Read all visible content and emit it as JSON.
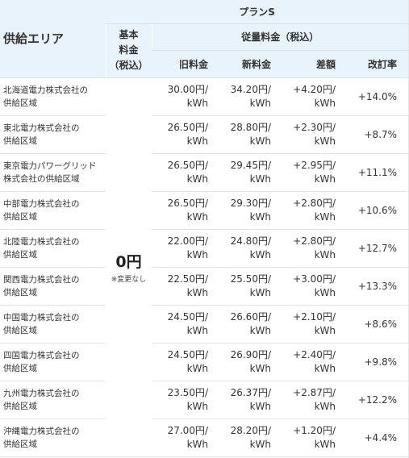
{
  "header": {
    "area_label": "供給エリア",
    "plan_label": "プランS",
    "base_fee_label": "基本\n料金\n（税込）",
    "usage_fee_label": "従量料金（税込）",
    "col_old": "旧料金",
    "col_new": "新料金",
    "col_diff": "差額",
    "col_rate": "改訂率"
  },
  "base_fee": {
    "value": "0円",
    "note": "※変更なし"
  },
  "rows": [
    {
      "area": "北海道電力株式会社の\n供給区域",
      "old": "30.00円/\nkWh",
      "new": "34.20円/\nkWh",
      "diff": "+4.20円/\nkWh",
      "rate": "+14.0%"
    },
    {
      "area": "東北電力株式会社の\n供給区域",
      "old": "26.50円/\nkWh",
      "new": "28.80円/\nkWh",
      "diff": "+2.30円/\nkWh",
      "rate": "+8.7%"
    },
    {
      "area": "東京電力パワーグリッド\n株式会社の供給区域",
      "old": "26.50円/\nkWh",
      "new": "29.45円/\nkWh",
      "diff": "+2.95円/\nkWh",
      "rate": "+11.1%"
    },
    {
      "area": "中部電力株式会社の\n供給区域",
      "old": "26.50円/\nkWh",
      "new": "29.30円/\nkWh",
      "diff": "+2.80円/\nkWh",
      "rate": "+10.6%"
    },
    {
      "area": "北陸電力株式会社の\n供給区域",
      "old": "22.00円/\nkWh",
      "new": "24.80円/\nkWh",
      "diff": "+2.80円/\nkWh",
      "rate": "+12.7%"
    },
    {
      "area": "関西電力株式会社の\n供給区域",
      "old": "22.50円/\nkWh",
      "new": "25.50円/\nkWh",
      "diff": "+3.00円/\nkWh",
      "rate": "+13.3%"
    },
    {
      "area": "中国電力株式会社の\n供給区域",
      "old": "24.50円/\nkWh",
      "new": "26.60円/\nkWh",
      "diff": "+2.10円/\nkWh",
      "rate": "+8.6%"
    },
    {
      "area": "四国電力株式会社の\n供給区域",
      "old": "24.50円/\nkWh",
      "new": "26.90円/\nkWh",
      "diff": "+2.40円/\nkWh",
      "rate": "+9.8%"
    },
    {
      "area": "九州電力株式会社の\n供給区域",
      "old": "23.50円/\nkWh",
      "new": "26.37円/\nkWh",
      "diff": "+2.87円/\nkWh",
      "rate": "+12.2%"
    },
    {
      "area": "沖縄電力株式会社の\n供給区域",
      "old": "27.00円/\nkWh",
      "new": "28.20円/\nkWh",
      "diff": "+1.20円/\nkWh",
      "rate": "+4.4%"
    }
  ]
}
